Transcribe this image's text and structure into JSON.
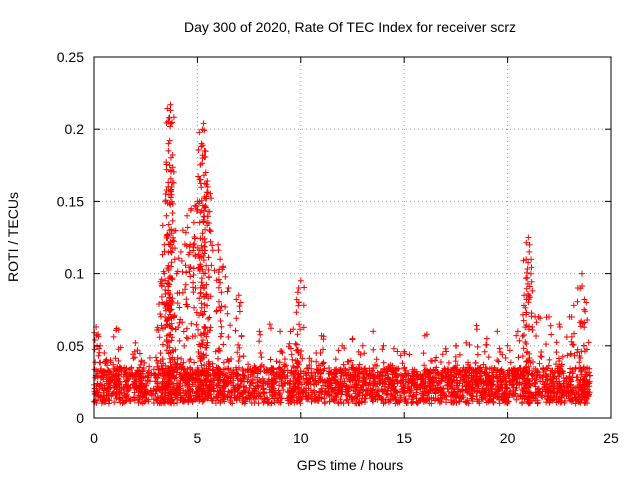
{
  "chart_data": {
    "type": "scatter",
    "title": "Day 300 of 2020, Rate Of TEC Index for receiver scrz",
    "xlabel": "GPS time / hours",
    "ylabel": "ROTI / TECUs",
    "xlim": [
      0,
      25
    ],
    "ylim": [
      0,
      0.25
    ],
    "x_ticks": [
      "0",
      "5",
      "10",
      "15",
      "20",
      "25"
    ],
    "y_ticks": [
      "0",
      "0.05",
      "0.1",
      "0.15",
      "0.2",
      "0.25"
    ],
    "grid": true,
    "marker": "plus",
    "color": "#ff0000",
    "x_range_observed": [
      0,
      24
    ],
    "baseline_band": [
      0.01,
      0.035
    ],
    "points": [
      {
        "x": 0.1,
        "y": 0.063
      },
      {
        "x": 0.2,
        "y": 0.058
      },
      {
        "x": 0.3,
        "y": 0.05
      },
      {
        "x": 0.5,
        "y": 0.045
      },
      {
        "x": 1.1,
        "y": 0.062
      },
      {
        "x": 1.2,
        "y": 0.061
      },
      {
        "x": 0.8,
        "y": 0.04
      },
      {
        "x": 2.0,
        "y": 0.052
      },
      {
        "x": 2.1,
        "y": 0.047
      },
      {
        "x": 2.3,
        "y": 0.04
      },
      {
        "x": 3.0,
        "y": 0.042
      },
      {
        "x": 3.2,
        "y": 0.072
      },
      {
        "x": 3.3,
        "y": 0.08
      },
      {
        "x": 3.4,
        "y": 0.1
      },
      {
        "x": 3.4,
        "y": 0.12
      },
      {
        "x": 3.5,
        "y": 0.14
      },
      {
        "x": 3.6,
        "y": 0.185
      },
      {
        "x": 3.6,
        "y": 0.19
      },
      {
        "x": 3.65,
        "y": 0.208
      },
      {
        "x": 3.7,
        "y": 0.213
      },
      {
        "x": 3.7,
        "y": 0.217
      },
      {
        "x": 3.75,
        "y": 0.16
      },
      {
        "x": 3.8,
        "y": 0.142
      },
      {
        "x": 4.0,
        "y": 0.1
      },
      {
        "x": 4.2,
        "y": 0.115
      },
      {
        "x": 4.3,
        "y": 0.13
      },
      {
        "x": 4.5,
        "y": 0.14
      },
      {
        "x": 4.7,
        "y": 0.145
      },
      {
        "x": 4.8,
        "y": 0.12
      },
      {
        "x": 5.0,
        "y": 0.15
      },
      {
        "x": 5.1,
        "y": 0.165
      },
      {
        "x": 5.2,
        "y": 0.19
      },
      {
        "x": 5.25,
        "y": 0.2
      },
      {
        "x": 5.3,
        "y": 0.204
      },
      {
        "x": 5.35,
        "y": 0.185
      },
      {
        "x": 5.4,
        "y": 0.17
      },
      {
        "x": 5.5,
        "y": 0.16
      },
      {
        "x": 5.6,
        "y": 0.13
      },
      {
        "x": 6.0,
        "y": 0.12
      },
      {
        "x": 6.1,
        "y": 0.11
      },
      {
        "x": 6.2,
        "y": 0.103
      },
      {
        "x": 6.5,
        "y": 0.09
      },
      {
        "x": 7.0,
        "y": 0.085
      },
      {
        "x": 7.1,
        "y": 0.08
      },
      {
        "x": 8.0,
        "y": 0.06
      },
      {
        "x": 8.5,
        "y": 0.065
      },
      {
        "x": 9.0,
        "y": 0.06
      },
      {
        "x": 9.5,
        "y": 0.06
      },
      {
        "x": 9.8,
        "y": 0.082
      },
      {
        "x": 9.9,
        "y": 0.09
      },
      {
        "x": 10.0,
        "y": 0.095
      },
      {
        "x": 11.0,
        "y": 0.057
      },
      {
        "x": 12.0,
        "y": 0.05
      },
      {
        "x": 12.5,
        "y": 0.055
      },
      {
        "x": 13.0,
        "y": 0.05
      },
      {
        "x": 13.5,
        "y": 0.06
      },
      {
        "x": 14.0,
        "y": 0.05
      },
      {
        "x": 14.5,
        "y": 0.048
      },
      {
        "x": 15.0,
        "y": 0.046
      },
      {
        "x": 16.0,
        "y": 0.057
      },
      {
        "x": 16.1,
        "y": 0.058
      },
      {
        "x": 17.0,
        "y": 0.048
      },
      {
        "x": 17.5,
        "y": 0.05
      },
      {
        "x": 18.0,
        "y": 0.052
      },
      {
        "x": 18.5,
        "y": 0.064
      },
      {
        "x": 19.0,
        "y": 0.055
      },
      {
        "x": 19.5,
        "y": 0.06
      },
      {
        "x": 20.0,
        "y": 0.05
      },
      {
        "x": 20.5,
        "y": 0.06
      },
      {
        "x": 20.8,
        "y": 0.085
      },
      {
        "x": 20.9,
        "y": 0.11
      },
      {
        "x": 21.0,
        "y": 0.125
      },
      {
        "x": 21.05,
        "y": 0.115
      },
      {
        "x": 21.2,
        "y": 0.088
      },
      {
        "x": 21.5,
        "y": 0.07
      },
      {
        "x": 22.0,
        "y": 0.07
      },
      {
        "x": 22.5,
        "y": 0.065
      },
      {
        "x": 23.0,
        "y": 0.07
      },
      {
        "x": 23.2,
        "y": 0.078
      },
      {
        "x": 23.4,
        "y": 0.09
      },
      {
        "x": 23.6,
        "y": 0.1
      },
      {
        "x": 23.8,
        "y": 0.08
      }
    ]
  }
}
